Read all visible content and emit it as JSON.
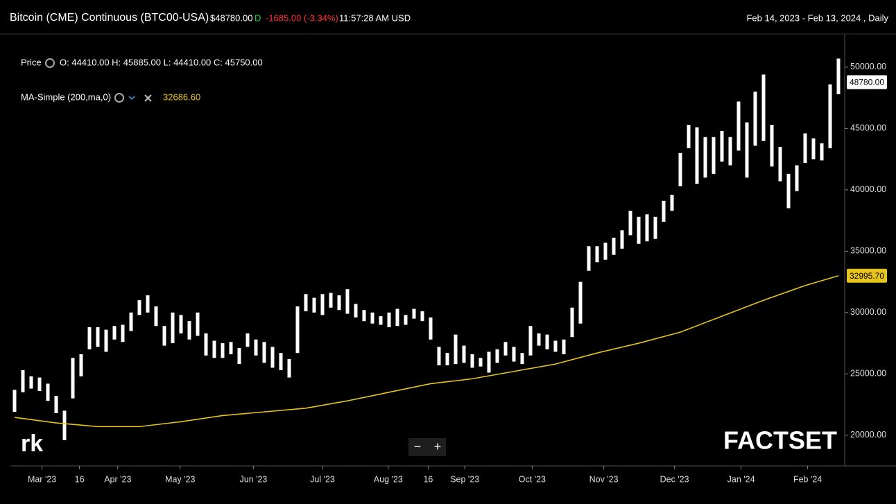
{
  "header": {
    "title": "Bitcoin (CME) Continuous (BTC00-USA)",
    "last": "$48780.00",
    "flag": "D",
    "change": "-1685.00",
    "change_pct": "(-3.34%)",
    "time": "11:57:28 AM USD",
    "range": "Feb 14, 2023 - Feb 13, 2024 , Daily"
  },
  "legend": {
    "price_label": "Price",
    "ohlc": "O: 44410.00 H: 45885.00 L: 44410.00 C: 45750.00",
    "ma_label": "MA-Simple (200,ma,0)",
    "ma_value": "32686.60"
  },
  "controls": {
    "zoom_out": "−",
    "zoom_in": "+"
  },
  "logos": {
    "left": "rk",
    "right": "FACTSET"
  },
  "chart_data": {
    "type": "ohlc",
    "xlim": [
      0,
      100
    ],
    "xticks": [
      {
        "value": 3.3,
        "label": "Mar '23"
      },
      {
        "value": 7.8,
        "label": "16"
      },
      {
        "value": 12.4,
        "label": "Apr '23"
      },
      {
        "value": 19.9,
        "label": "May '23"
      },
      {
        "value": 28.7,
        "label": "Jun '23"
      },
      {
        "value": 37,
        "label": "Jul '23"
      },
      {
        "value": 44.9,
        "label": "Aug '23"
      },
      {
        "value": 49.7,
        "label": "16"
      },
      {
        "value": 54.1,
        "label": "Sep '23"
      },
      {
        "value": 62.2,
        "label": "Oct '23"
      },
      {
        "value": 70.8,
        "label": "Nov '23"
      },
      {
        "value": 79.3,
        "label": "Dec '23"
      },
      {
        "value": 87.3,
        "label": "Jan '24"
      },
      {
        "value": 95.3,
        "label": "Feb '24"
      }
    ],
    "ylim": [
      17500,
      52650
    ],
    "yticks": [
      {
        "value": 20000,
        "label": "20000.00"
      },
      {
        "value": 25000,
        "label": "25000.00"
      },
      {
        "value": 30000,
        "label": "30000.00"
      },
      {
        "value": 35000,
        "label": "35000.00"
      },
      {
        "value": 40000,
        "label": "40000.00"
      },
      {
        "value": 45000,
        "label": "45000.00"
      },
      {
        "value": 50000,
        "label": "50000.00"
      }
    ],
    "color": "#ffffff",
    "low": [
      21900,
      23500,
      23800,
      23600,
      22800,
      21800,
      19600,
      23000,
      24800,
      27000,
      27200,
      26800,
      27800,
      27600,
      28500,
      29800,
      30000,
      28900,
      27300,
      27500,
      28300,
      27800,
      28100,
      26500,
      26300,
      26300,
      26600,
      25800,
      27200,
      26500,
      25900,
      25500,
      25300,
      24700,
      26700,
      30100,
      30000,
      29800,
      30400,
      30200,
      29900,
      29600,
      29300,
      29100,
      29000,
      28800,
      28900,
      29000,
      29500,
      29300,
      27800,
      25700,
      25700,
      25800,
      25900,
      25500,
      25600,
      25100,
      25900,
      26500,
      26000,
      25800,
      26500,
      27300,
      27000,
      26800,
      26600,
      28000,
      29100,
      33400,
      34100,
      34300,
      34700,
      35200,
      36300,
      35600,
      35800,
      36000,
      37400,
      38300,
      40300,
      43400,
      40500,
      41000,
      41300,
      42300,
      42000,
      43200,
      41000,
      43600,
      44000,
      41900,
      40700,
      38500,
      39900,
      42200,
      42500,
      42400,
      43400,
      47800
    ],
    "high": [
      23700,
      25300,
      24800,
      24700,
      24200,
      23200,
      22000,
      26300,
      26600,
      28800,
      28800,
      28600,
      28900,
      29000,
      30000,
      31000,
      31400,
      30500,
      28900,
      30000,
      29800,
      29300,
      30000,
      28300,
      27700,
      27500,
      27600,
      27100,
      28300,
      27800,
      27600,
      27200,
      26700,
      26200,
      30500,
      31500,
      31200,
      31500,
      31600,
      31400,
      31900,
      30700,
      30200,
      30000,
      29700,
      30000,
      30300,
      29800,
      30300,
      30100,
      29600,
      27200,
      26700,
      28200,
      27300,
      26600,
      26300,
      26800,
      27000,
      27600,
      27200,
      26700,
      28900,
      28300,
      28200,
      27700,
      27800,
      30400,
      32500,
      35400,
      35400,
      35700,
      36100,
      36700,
      38300,
      37800,
      38000,
      37800,
      39100,
      39600,
      43000,
      45300,
      45100,
      44300,
      44300,
      44800,
      44300,
      47200,
      45500,
      48000,
      49400,
      45300,
      43500,
      41300,
      42000,
      44600,
      44200,
      43800,
      48600,
      50700
    ],
    "ma": {
      "name": "MA-Simple (200,ma,0)",
      "color": "#e8c51c",
      "x": [
        0,
        5,
        10,
        15,
        20,
        25,
        30,
        35,
        40,
        45,
        50,
        55,
        60,
        65,
        70,
        75,
        80,
        85,
        90,
        95,
        99
      ],
      "values": [
        21450,
        21000,
        20700,
        20700,
        21100,
        21600,
        21900,
        22200,
        22800,
        23500,
        24200,
        24600,
        25200,
        25800,
        26700,
        27500,
        28400,
        29700,
        31000,
        32200,
        32996
      ]
    },
    "last_price": {
      "value": 48780,
      "label": "48780.00"
    },
    "ma_last": {
      "value": 32995.7,
      "label": "32995.70"
    }
  }
}
